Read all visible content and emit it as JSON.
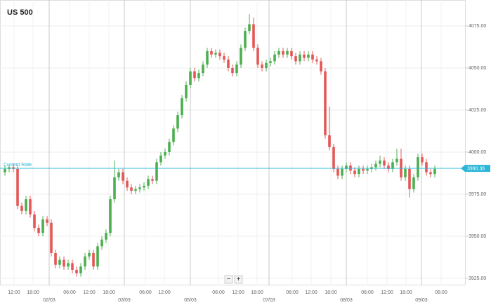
{
  "chart_data": {
    "type": "candlestick",
    "title": "US 500",
    "up_color": "#4caf50",
    "down_color": "#e45757",
    "grid": true,
    "ylim": [
      3920.8,
      4090.4
    ],
    "yticks": [
      {
        "value": 3925,
        "label": "3925.00"
      },
      {
        "value": 3950,
        "label": "3950.00"
      },
      {
        "value": 3975,
        "label": "3975.00"
      },
      {
        "value": 4000,
        "label": "4000.00"
      },
      {
        "value": 4025,
        "label": "4025.00"
      },
      {
        "value": 4050,
        "label": "4050.00"
      },
      {
        "value": 4075,
        "label": "4075.00"
      }
    ],
    "xlim": [
      -1.17,
      109.17
    ],
    "xticks": [
      {
        "value": 2.17,
        "label": "12:00"
      },
      {
        "value": 6.67,
        "label": "18:00"
      },
      {
        "value": 15.33,
        "label": "06:00"
      },
      {
        "value": 20,
        "label": "12:00"
      },
      {
        "value": 24.67,
        "label": "18:00"
      },
      {
        "value": 33.33,
        "label": "06:00"
      },
      {
        "value": 37.83,
        "label": "12:00"
      },
      {
        "value": 50.67,
        "label": "06:00"
      },
      {
        "value": 55.33,
        "label": "12:00"
      },
      {
        "value": 59.83,
        "label": "18:00"
      },
      {
        "value": 68.17,
        "label": "06:00"
      },
      {
        "value": 72.67,
        "label": "12:00"
      },
      {
        "value": 77.33,
        "label": "18:00"
      },
      {
        "value": 86,
        "label": "06:00"
      },
      {
        "value": 90.67,
        "label": "12:00"
      },
      {
        "value": 95.17,
        "label": "18:00"
      },
      {
        "value": 103.5,
        "label": "06:00"
      }
    ],
    "x_date_ticks": [
      {
        "value": 10.5,
        "label": "02/03"
      },
      {
        "value": 28.33,
        "label": "03/03"
      },
      {
        "value": 44,
        "label": "05/03"
      },
      {
        "value": 62.67,
        "label": "07/03"
      },
      {
        "value": 81,
        "label": "08/03"
      },
      {
        "value": 98.83,
        "label": "09/03"
      }
    ],
    "current_rate_label": "Current Rate",
    "current_rate": 3990.36,
    "current_rate_color": "#29b6d8",
    "zoom_controls": [
      "−",
      "+"
    ],
    "open": [
      3988,
      3990,
      3991,
      3990,
      3968,
      3965,
      3972,
      3963,
      3955,
      3952,
      3960,
      3958,
      3940,
      3933,
      3936,
      3932,
      3934,
      3930,
      3928,
      3932,
      3938,
      3940,
      3932,
      3944,
      3948,
      3952,
      3972,
      3985,
      3988,
      3983,
      3979,
      3977,
      3978,
      3979,
      3980,
      3984,
      3983,
      3994,
      3998,
      4000,
      4006,
      4014,
      4022,
      4032,
      4040,
      4048,
      4044,
      4047,
      4052,
      4060,
      4058,
      4059,
      4057,
      4055,
      4050,
      4047,
      4052,
      4062,
      4072,
      4076,
      4062,
      4052,
      4050,
      4053,
      4054,
      4058,
      4060,
      4058,
      4060,
      4057,
      4054,
      4058,
      4056,
      4058,
      4055,
      4054,
      4048,
      4010,
      4003,
      3990,
      3986,
      3990,
      3992,
      3989,
      3987,
      3990,
      3989,
      3990,
      3991,
      3993,
      3995,
      3992,
      3990,
      3994,
      3996,
      3985,
      3990,
      3978,
      3985,
      3997,
      3994,
      3988,
      3987
    ],
    "high": [
      3992,
      3993,
      3993,
      3992,
      3970,
      3974,
      3974,
      3965,
      3957,
      3962,
      3962,
      3960,
      3942,
      3938,
      3938,
      3936,
      3936,
      3932,
      3934,
      3940,
      3942,
      3942,
      3946,
      3950,
      3954,
      3974,
      3995,
      3990,
      3990,
      3985,
      3981,
      3980,
      3981,
      3982,
      3986,
      3986,
      3996,
      4000,
      4002,
      4008,
      4016,
      4024,
      4034,
      4042,
      4050,
      4050,
      4049,
      4054,
      4062,
      4062,
      4061,
      4061,
      4059,
      4057,
      4052,
      4054,
      4064,
      4074,
      4082,
      4080,
      4064,
      4054,
      4055,
      4056,
      4060,
      4062,
      4062,
      4062,
      4062,
      4059,
      4060,
      4060,
      4060,
      4060,
      4057,
      4056,
      4050,
      4027,
      4005,
      3992,
      3992,
      3994,
      3994,
      3991,
      3992,
      3992,
      3992,
      3993,
      3995,
      3998,
      3997,
      3994,
      3996,
      4002,
      4002,
      3992,
      3992,
      3987,
      3999,
      3999,
      3996,
      3990,
      3992
    ],
    "low": [
      3986,
      3988,
      3988,
      3966,
      3963,
      3963,
      3961,
      3953,
      3950,
      3950,
      3956,
      3938,
      3931,
      3931,
      3930,
      3930,
      3928,
      3926,
      3926,
      3930,
      3936,
      3930,
      3930,
      3942,
      3946,
      3950,
      3970,
      3983,
      3981,
      3977,
      3975,
      3975,
      3976,
      3977,
      3978,
      3981,
      3981,
      3992,
      3996,
      3998,
      4004,
      4012,
      4020,
      4030,
      4038,
      4042,
      4042,
      4045,
      4050,
      4056,
      4056,
      4055,
      4053,
      4048,
      4045,
      4045,
      4050,
      4060,
      4070,
      4060,
      4050,
      4048,
      4048,
      4051,
      4052,
      4056,
      4056,
      4056,
      4055,
      4052,
      4052,
      4054,
      4054,
      4053,
      4052,
      4046,
      4008,
      4001,
      3988,
      3984,
      3984,
      3988,
      3987,
      3985,
      3985,
      3987,
      3987,
      3988,
      3989,
      3991,
      3990,
      3988,
      3988,
      3992,
      3983,
      3983,
      3973,
      3976,
      3983,
      3992,
      3986,
      3985,
      3985
    ],
    "close": [
      3990,
      3991,
      3990,
      3968,
      3965,
      3972,
      3963,
      3955,
      3952,
      3960,
      3958,
      3940,
      3933,
      3936,
      3932,
      3934,
      3930,
      3928,
      3932,
      3938,
      3940,
      3932,
      3944,
      3948,
      3952,
      3972,
      3985,
      3988,
      3983,
      3979,
      3977,
      3978,
      3979,
      3980,
      3984,
      3983,
      3994,
      3998,
      4000,
      4006,
      4014,
      4022,
      4032,
      4040,
      4048,
      4044,
      4047,
      4052,
      4060,
      4058,
      4059,
      4057,
      4055,
      4050,
      4047,
      4052,
      4062,
      4072,
      4076,
      4062,
      4052,
      4050,
      4053,
      4054,
      4058,
      4060,
      4058,
      4060,
      4057,
      4054,
      4058,
      4056,
      4058,
      4055,
      4054,
      4048,
      4010,
      4003,
      3990,
      3986,
      3990,
      3992,
      3989,
      3987,
      3990,
      3989,
      3990,
      3991,
      3993,
      3995,
      3992,
      3990,
      3994,
      3996,
      3985,
      3990,
      3978,
      3985,
      3997,
      3994,
      3988,
      3987,
      3990
    ]
  }
}
